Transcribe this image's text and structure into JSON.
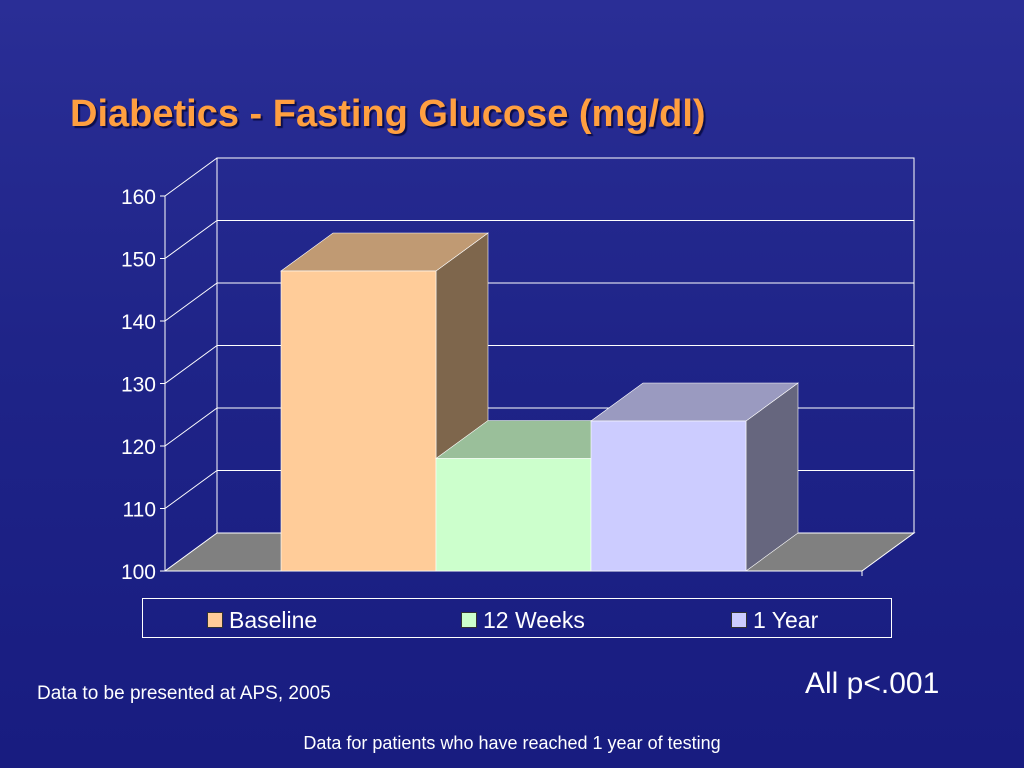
{
  "slide": {
    "title": "Diabetics - Fasting Glucose (mg/dl)",
    "note_left": "Data to be presented at APS, 2005",
    "note_right": "All p<.001",
    "footnote": "Data for patients who have reached 1 year of testing"
  },
  "chart_data": {
    "type": "bar",
    "style": "3d-bar",
    "categories": [
      "Baseline",
      "12 Weeks",
      "1 Year"
    ],
    "values": [
      148,
      118,
      124
    ],
    "ylim": [
      100,
      160
    ],
    "yticks": [
      100,
      110,
      120,
      130,
      140,
      150,
      160
    ],
    "grid": true,
    "legend_position": "bottom",
    "colors": {
      "Baseline": {
        "front": "#ffcc99",
        "top": "#c09a73",
        "side": "#7e664c"
      },
      "12 Weeks": {
        "front": "#ccffcc",
        "top": "#9abf9a",
        "side": "#6b876b"
      },
      "1 Year": {
        "front": "#ccccff",
        "top": "#9a9ac0",
        "side": "#66667e"
      },
      "floor": "#808080",
      "background": "#1f2488",
      "title": "#ff9f40"
    }
  }
}
